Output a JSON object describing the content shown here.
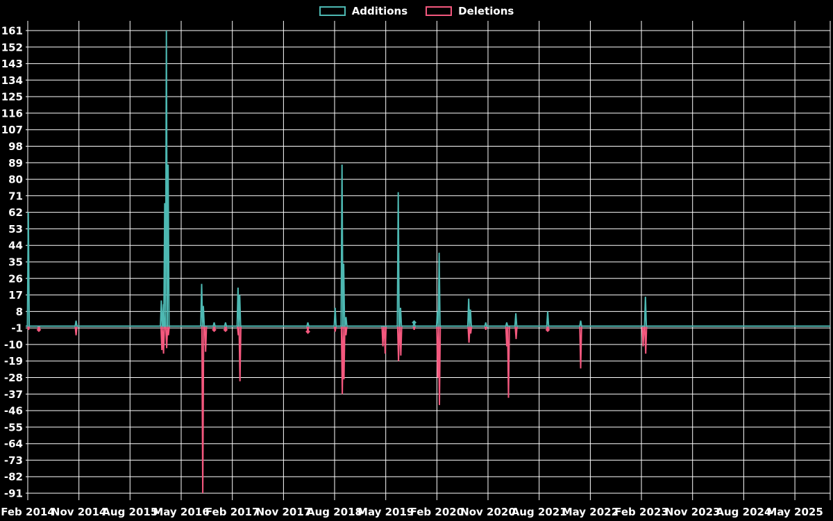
{
  "legend": {
    "additions_label": "Additions",
    "deletions_label": "Deletions"
  },
  "colors": {
    "background": "#000000",
    "grid": "#ffffff",
    "text": "#ffffff",
    "additions": "#4db8b2",
    "deletions": "#f4587e"
  },
  "chart_data": {
    "type": "line",
    "title": "",
    "xlabel": "",
    "ylabel": "",
    "legend_position": "top-center",
    "grid": true,
    "x_axis": {
      "start_month": "2014-02",
      "unit": "months since 2014-02",
      "tick_step_months": 9,
      "tick_labels": [
        "Feb 2014",
        "Nov 2014",
        "Aug 2015",
        "May 2016",
        "Feb 2017",
        "Nov 2017",
        "Aug 2018",
        "May 2019",
        "Feb 2020",
        "Nov 2020",
        "Aug 2021",
        "May 2022",
        "Feb 2023",
        "Nov 2023",
        "Aug 2024",
        "May 2025"
      ],
      "range_t": [
        -0.4,
        141.2
      ]
    },
    "y_axis": {
      "ticks": [
        161,
        152,
        143,
        134,
        125,
        116,
        107,
        98,
        89,
        80,
        71,
        62,
        53,
        44,
        35,
        26,
        17,
        8,
        -1,
        -10,
        -19,
        -28,
        -37,
        -46,
        -55,
        -64,
        -73,
        -82,
        -91
      ],
      "step": 9,
      "range": [
        -95,
        166
      ]
    },
    "series": [
      {
        "name": "Additions",
        "color_key": "additions",
        "baseline": 0,
        "events": [
          [
            0.1,
            62
          ],
          [
            8.5,
            3
          ],
          [
            23.5,
            14
          ],
          [
            23.9,
            12
          ],
          [
            24.1,
            67
          ],
          [
            24.4,
            161
          ],
          [
            24.7,
            88
          ],
          [
            30.6,
            23
          ],
          [
            30.9,
            11
          ],
          [
            32.8,
            2
          ],
          [
            34.8,
            2
          ],
          [
            37.0,
            21
          ],
          [
            37.3,
            17
          ],
          [
            49.3,
            2
          ],
          [
            54.1,
            10
          ],
          [
            55.3,
            88
          ],
          [
            55.6,
            34
          ],
          [
            56.0,
            5
          ],
          [
            65.2,
            73
          ],
          [
            65.6,
            10
          ],
          [
            68.0,
            2
          ],
          [
            72.1,
            8
          ],
          [
            72.4,
            40
          ],
          [
            77.6,
            15
          ],
          [
            77.9,
            9
          ],
          [
            80.6,
            2
          ],
          [
            84.3,
            2
          ],
          [
            85.9,
            7
          ],
          [
            91.5,
            8
          ],
          [
            97.3,
            3
          ],
          [
            108.7,
            16
          ]
        ]
      },
      {
        "name": "Deletions",
        "color_key": "deletions",
        "baseline": 0,
        "events": [
          [
            0.15,
            -2
          ],
          [
            1.95,
            -2
          ],
          [
            8.5,
            -5
          ],
          [
            23.6,
            -13
          ],
          [
            23.9,
            -15
          ],
          [
            24.45,
            -12
          ],
          [
            24.75,
            -5
          ],
          [
            30.8,
            -91
          ],
          [
            31.3,
            -14
          ],
          [
            32.8,
            -2
          ],
          [
            34.8,
            -2
          ],
          [
            37.05,
            -5
          ],
          [
            37.35,
            -30
          ],
          [
            49.3,
            -3
          ],
          [
            54.1,
            -3
          ],
          [
            55.35,
            -37
          ],
          [
            55.65,
            -29
          ],
          [
            56.0,
            -5
          ],
          [
            62.5,
            -11
          ],
          [
            62.9,
            -15
          ],
          [
            65.25,
            -19
          ],
          [
            65.65,
            -16
          ],
          [
            68.0,
            -2
          ],
          [
            72.15,
            -28
          ],
          [
            72.45,
            -43
          ],
          [
            77.65,
            -9
          ],
          [
            77.95,
            -4
          ],
          [
            80.6,
            -2
          ],
          [
            84.3,
            -11
          ],
          [
            84.6,
            -39
          ],
          [
            85.95,
            -7
          ],
          [
            91.5,
            -2
          ],
          [
            97.3,
            -23
          ],
          [
            108.3,
            -11
          ],
          [
            108.75,
            -15
          ]
        ]
      }
    ],
    "markers": [
      {
        "series": "deletions",
        "t": 1.95,
        "v": -2
      },
      {
        "series": "deletions",
        "t": 32.8,
        "v": -2
      },
      {
        "series": "deletions",
        "t": 34.8,
        "v": -2
      },
      {
        "series": "deletions",
        "t": 49.3,
        "v": -3
      },
      {
        "series": "additions",
        "t": 68.0,
        "v": 2
      },
      {
        "series": "deletions",
        "t": 91.5,
        "v": -2
      }
    ]
  }
}
